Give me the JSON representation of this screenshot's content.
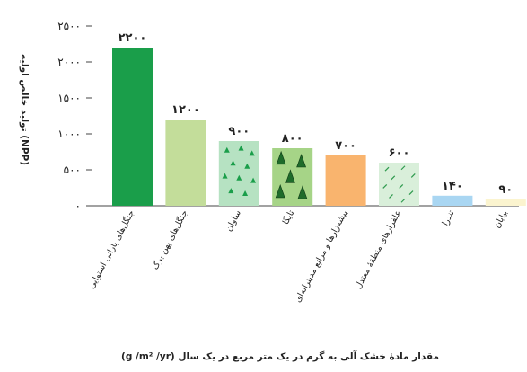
{
  "chart_data": {
    "type": "bar",
    "categories": [
      "جنگل‌های بارانی استوایی",
      "جنگل‌های پهن برگ",
      "ساوان",
      "تایگا",
      "بیشه‌زارها و مراتع مدیترانه‌ای",
      "علفزارهای منطقهٔ معتدل",
      "تندرا",
      "بیابان"
    ],
    "values": [
      2200,
      1200,
      900,
      800,
      700,
      600,
      140,
      90
    ],
    "value_labels": [
      "۲۲۰۰",
      "۱۲۰۰",
      "۹۰۰",
      "۸۰۰",
      "۷۰۰",
      "۶۰۰",
      "۱۴۰",
      "۹۰"
    ],
    "colors": [
      "#1a9e4a",
      "#c3dd9a",
      "#b6e2c2",
      "#a6d487",
      "#f9b46e",
      "#d9efda",
      "#a9d6f2",
      "#fbf4cf"
    ],
    "patterns": [
      "none",
      "none",
      "trees",
      "conifers",
      "none",
      "dashes",
      "none",
      "none"
    ],
    "ylim": [
      0,
      2500
    ],
    "yticks": [
      0,
      500,
      1000,
      1500,
      2000,
      2500
    ],
    "ytick_labels": [
      "۰",
      "۵۰۰",
      "۱۰۰۰",
      "۱۵۰۰",
      "۲۰۰۰",
      "۲۵۰۰"
    ],
    "ylabel": "تولید خالص اولیه (NPP)",
    "xlabel": "مقدار مادهٔ خشک آلی به گرم در یک متر مربع در یک سال (g /m² /yr)",
    "grid": false
  }
}
